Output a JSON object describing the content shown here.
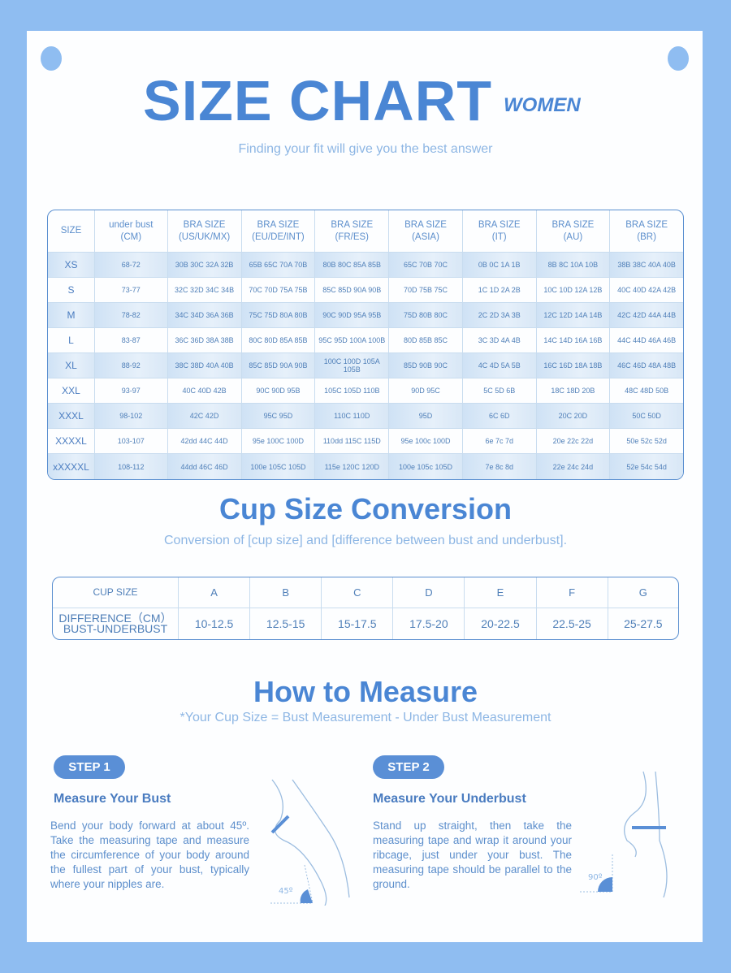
{
  "header": {
    "title": "SIZE CHART",
    "badge": "WOMEN",
    "subtitle": "Finding your fit will give you the best answer"
  },
  "size_table": {
    "headers": [
      [
        "SIZE",
        ""
      ],
      [
        "under bust",
        "(CM)"
      ],
      [
        "BRA SIZE",
        "(US/UK/MX)"
      ],
      [
        "BRA SIZE",
        "(EU/DE/INT)"
      ],
      [
        "BRA SIZE",
        "(FR/ES)"
      ],
      [
        "BRA SIZE",
        "(ASIA)"
      ],
      [
        "BRA SIZE",
        "(IT)"
      ],
      [
        "BRA SIZE",
        "(AU)"
      ],
      [
        "BRA SIZE",
        "(BR)"
      ]
    ],
    "rows": [
      [
        "XS",
        "68-72",
        "30B 30C 32A 32B",
        "65B 65C 70A 70B",
        "80B 80C 85A 85B",
        "65C 70B 70C",
        "0B 0C 1A 1B",
        "8B 8C 10A 10B",
        "38B 38C 40A 40B"
      ],
      [
        "S",
        "73-77",
        "32C 32D 34C 34B",
        "70C 70D 75A 75B",
        "85C 85D 90A 90B",
        "70D 75B 75C",
        "1C 1D 2A 2B",
        "10C 10D 12A 12B",
        "40C 40D 42A 42B"
      ],
      [
        "M",
        "78-82",
        "34C 34D 36A 36B",
        "75C 75D 80A 80B",
        "90C 90D 95A 95B",
        "75D 80B 80C",
        "2C 2D 3A 3B",
        "12C 12D 14A 14B",
        "42C 42D 44A 44B"
      ],
      [
        "L",
        "83-87",
        "36C 36D 38A 38B",
        "80C 80D 85A 85B",
        "95C 95D 100A 100B",
        "80D 85B 85C",
        "3C 3D 4A 4B",
        "14C 14D 16A 16B",
        "44C 44D 46A 46B"
      ],
      [
        "XL",
        "88-92",
        "38C 38D 40A 40B",
        "85C 85D 90A 90B",
        "100C 100D 105A 105B",
        "85D 90B 90C",
        "4C 4D 5A 5B",
        "16C 16D 18A 18B",
        "46C 46D 48A 48B"
      ],
      [
        "XXL",
        "93-97",
        "40C 40D 42B",
        "90C 90D 95B",
        "105C 105D 110B",
        "90D 95C",
        "5C 5D 6B",
        "18C 18D 20B",
        "48C 48D 50B"
      ],
      [
        "XXXL",
        "98-102",
        "42C 42D",
        "95C 95D",
        "110C 110D",
        "95D",
        "6C 6D",
        "20C 20D",
        "50C 50D"
      ],
      [
        "XXXXL",
        "103-107",
        "42dd 44C 44D",
        "95e 100C 100D",
        "110dd 115C 115D",
        "95e 100c 100D",
        "6e 7c 7d",
        "20e 22c 22d",
        "50e 52c 52d"
      ],
      [
        "xXXXXL",
        "108-112",
        "44dd 46C 46D",
        "100e 105C 105D",
        "115e 120C 120D",
        "100e 105c 105D",
        "7e 8c 8d",
        "22e 24c 24d",
        "52e 54c 54d"
      ]
    ]
  },
  "cup": {
    "title": "Cup Size Conversion",
    "subtitle": "Conversion of [cup size] and [difference between bust and underbust].",
    "row1_label": "CUP SIZE",
    "row2_label": [
      "DIFFERENCE（CM）",
      "BUST-UNDERBUST"
    ],
    "cups": [
      "A",
      "B",
      "C",
      "D",
      "E",
      "F",
      "G"
    ],
    "diffs": [
      "10-12.5",
      "12.5-15",
      "15-17.5",
      "17.5-20",
      "20-22.5",
      "22.5-25",
      "25-27.5"
    ]
  },
  "measure": {
    "title": "How to Measure",
    "note": "*Your Cup Size = Bust Measurement - Under Bust Measurement",
    "steps": [
      {
        "badge": "STEP 1",
        "heading": "Measure Your Bust",
        "text": "Bend your body forward at about 45º. Take the measuring tape and measure the circumference of your body around the fullest part of your bust, typically where your nipples are.",
        "angle": "45º"
      },
      {
        "badge": "STEP 2",
        "heading": "Measure Your Underbust",
        "text": "Stand up straight, then take the measuring tape and wrap it around your ribcage, just under your bust. The measuring tape should be parallel to the ground.",
        "angle": "90º"
      }
    ]
  },
  "colors": {
    "accent": "#4a86d4",
    "background": "#8fbdf1",
    "row_highlight": "#d5e6f6"
  }
}
